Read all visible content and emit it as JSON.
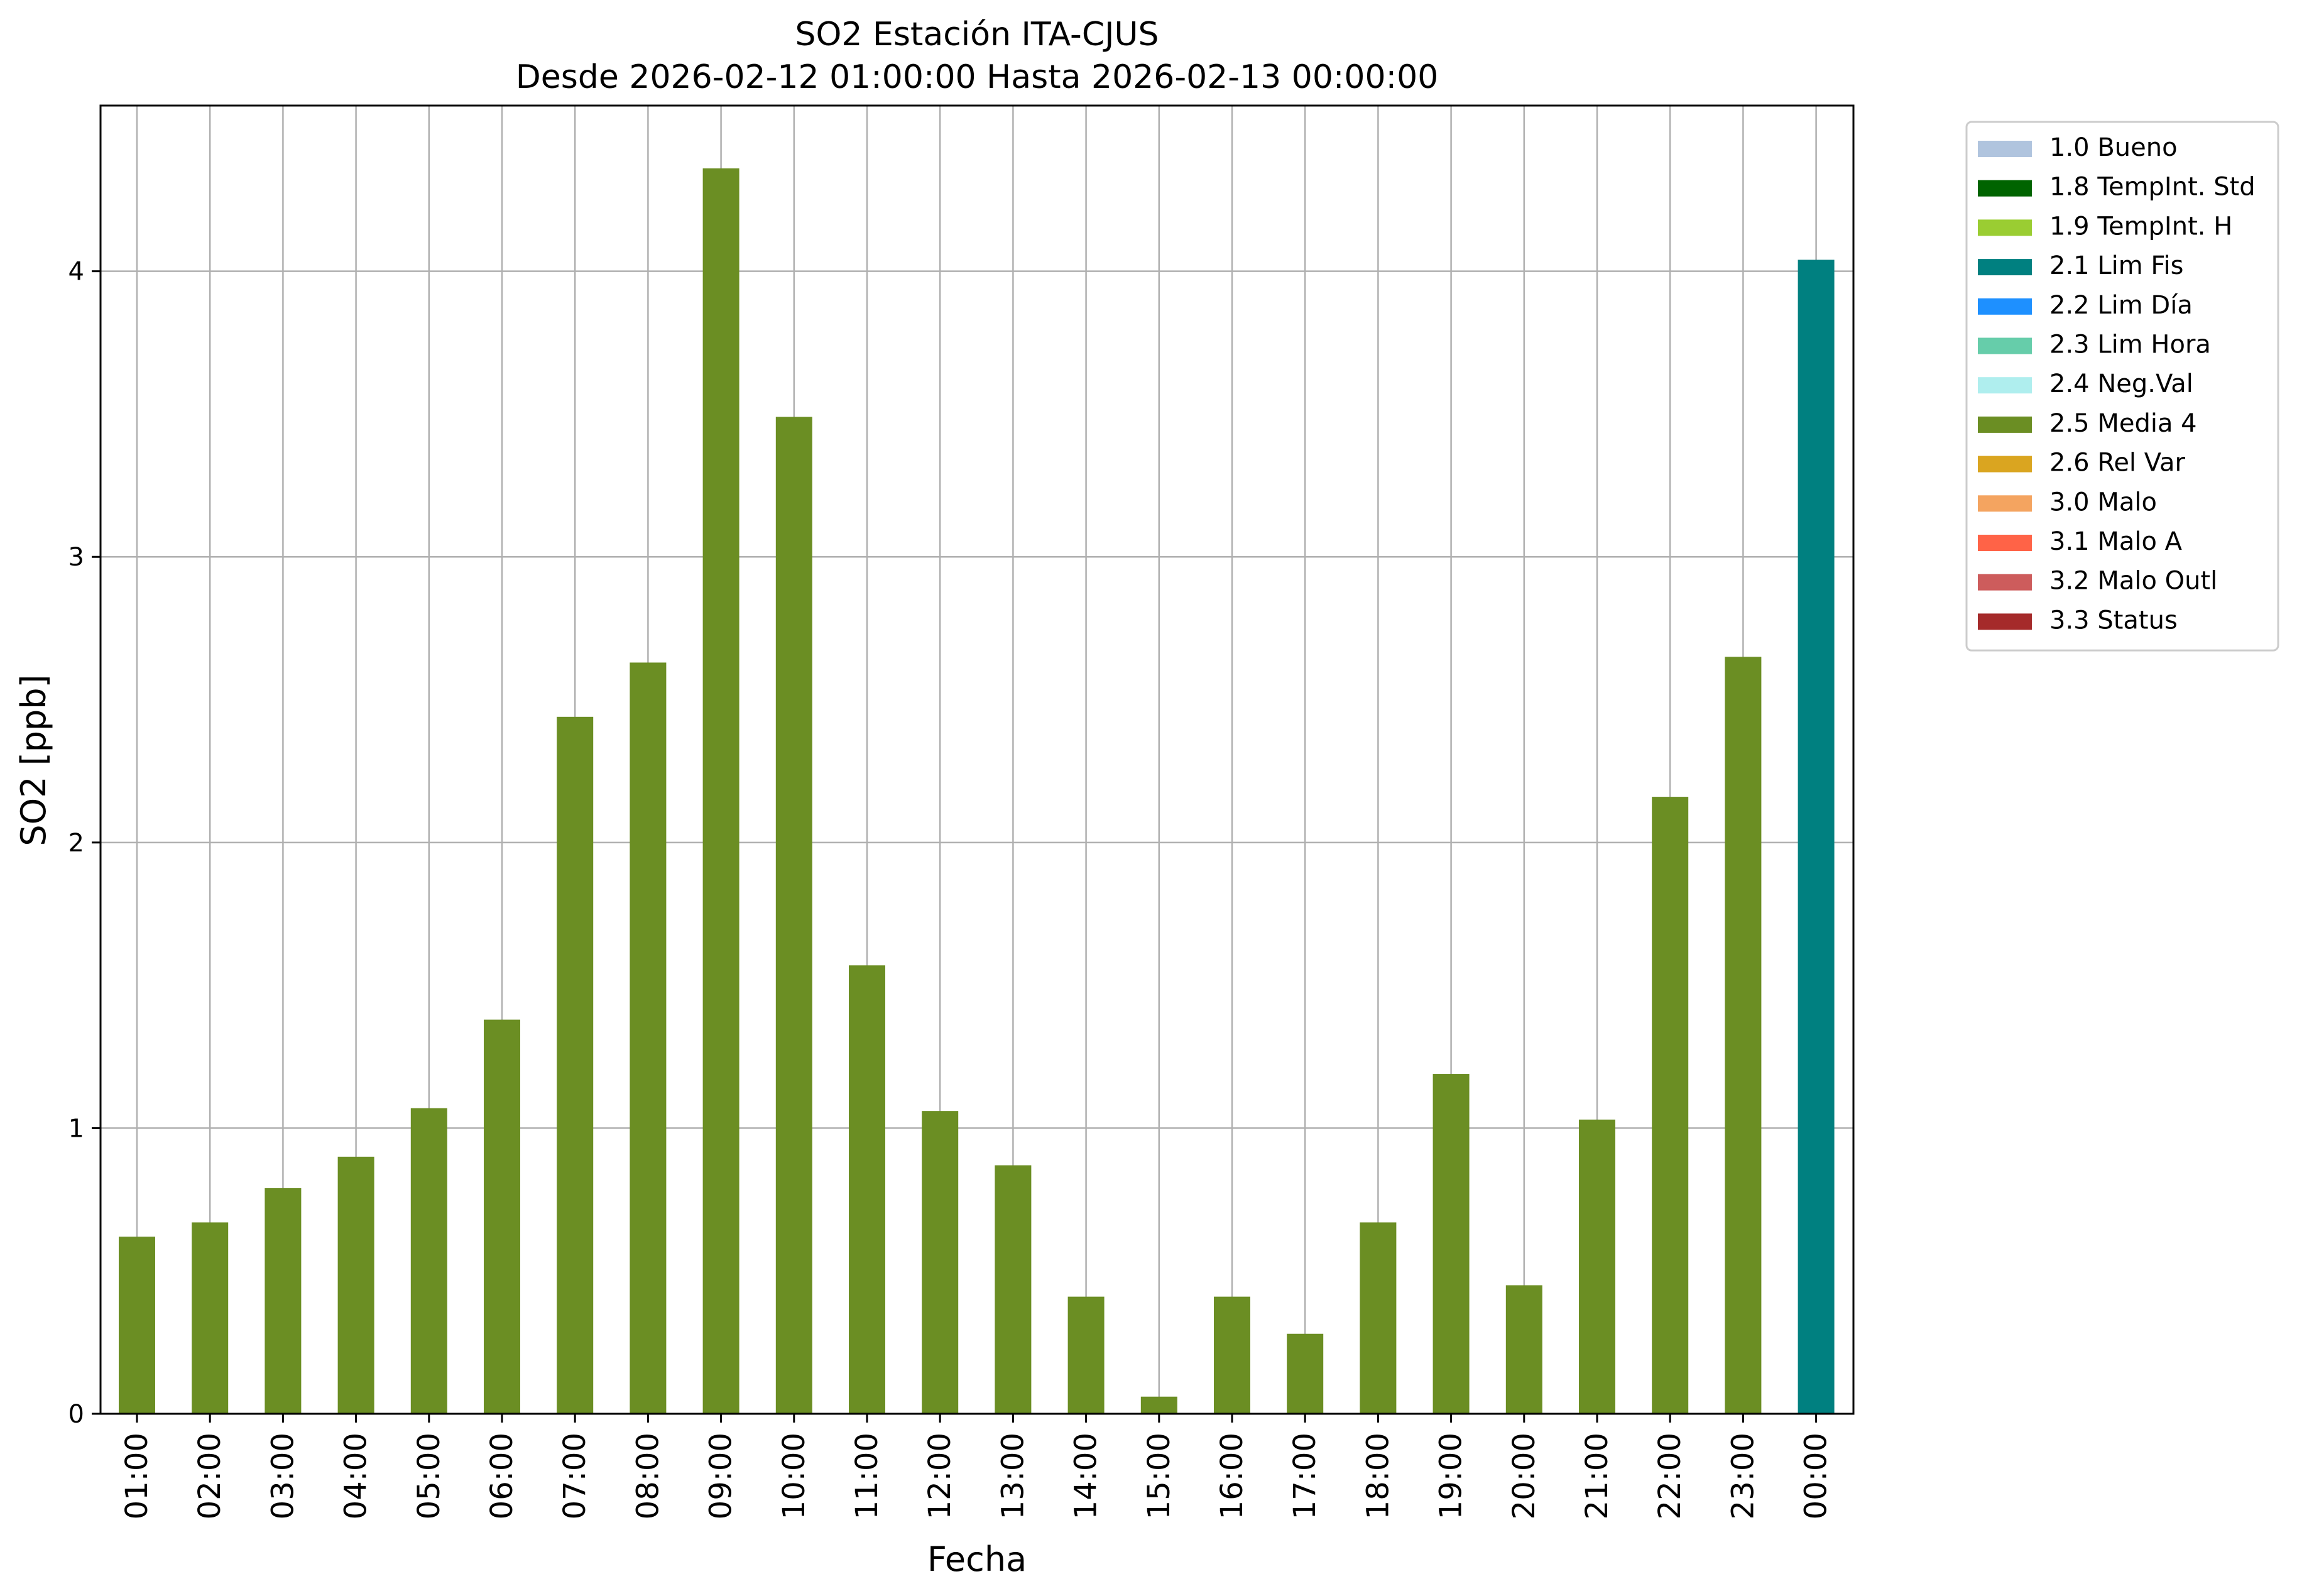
{
  "chart_data": {
    "type": "bar",
    "title": "SO2 Estación ITA-CJUS",
    "subtitle": "Desde 2026-02-12 01:00:00 Hasta 2026-02-13 00:00:00",
    "xlabel": "Fecha",
    "ylabel": "SO2 [ppb]",
    "ylim": [
      0,
      4.58
    ],
    "yticks": [
      0,
      1,
      2,
      3,
      4
    ],
    "grid": true,
    "legend_position": "right-top-outside",
    "categories": [
      "01:00",
      "02:00",
      "03:00",
      "04:00",
      "05:00",
      "06:00",
      "07:00",
      "08:00",
      "09:00",
      "10:00",
      "11:00",
      "12:00",
      "13:00",
      "14:00",
      "15:00",
      "16:00",
      "17:00",
      "18:00",
      "19:00",
      "20:00",
      "21:00",
      "22:00",
      "23:00",
      "00:00"
    ],
    "values": [
      0.62,
      0.67,
      0.79,
      0.9,
      1.07,
      1.38,
      2.44,
      2.63,
      4.36,
      3.49,
      1.57,
      1.06,
      0.87,
      0.41,
      0.06,
      0.41,
      0.28,
      0.67,
      1.19,
      0.45,
      1.03,
      2.16,
      2.65,
      4.04
    ],
    "flags": [
      "2.5 Media 4",
      "2.5 Media 4",
      "2.5 Media 4",
      "2.5 Media 4",
      "2.5 Media 4",
      "2.5 Media 4",
      "2.5 Media 4",
      "2.5 Media 4",
      "2.5 Media 4",
      "2.5 Media 4",
      "2.5 Media 4",
      "2.5 Media 4",
      "2.5 Media 4",
      "2.5 Media 4",
      "2.5 Media 4",
      "2.5 Media 4",
      "2.5 Media 4",
      "2.5 Media 4",
      "2.5 Media 4",
      "2.5 Media 4",
      "2.5 Media 4",
      "2.5 Media 4",
      "2.5 Media 4",
      "2.1 Lim Fis"
    ],
    "legend": [
      {
        "label": "1.0 Bueno",
        "color": "#b0c4de"
      },
      {
        "label": "1.8 TempInt. Std",
        "color": "#006400"
      },
      {
        "label": "1.9 TempInt. H",
        "color": "#9acd32"
      },
      {
        "label": "2.1 Lim Fis",
        "color": "#008080"
      },
      {
        "label": "2.2 Lim Día",
        "color": "#1e90ff"
      },
      {
        "label": "2.3 Lim Hora",
        "color": "#66cdaa"
      },
      {
        "label": "2.4 Neg.Val",
        "color": "#afeeee"
      },
      {
        "label": "2.5 Media 4",
        "color": "#6b8e23"
      },
      {
        "label": "2.6 Rel Var",
        "color": "#daa520"
      },
      {
        "label": "3.0 Malo",
        "color": "#f4a460"
      },
      {
        "label": "3.1 Malo A",
        "color": "#ff6347"
      },
      {
        "label": "3.2 Malo Outl",
        "color": "#cd5c5c"
      },
      {
        "label": "3.3 Status",
        "color": "#a52a2a"
      }
    ]
  }
}
